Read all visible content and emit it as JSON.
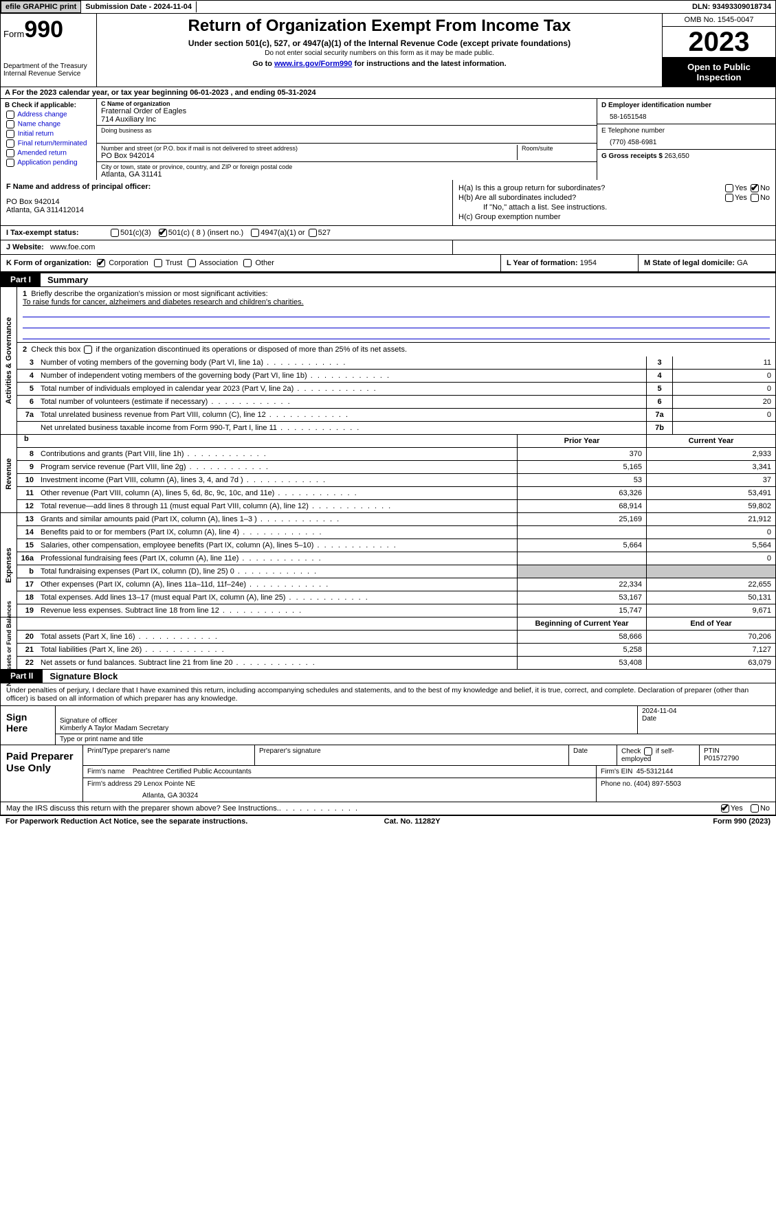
{
  "topbar": {
    "efile_label": "efile GRAPHIC print",
    "submission_label": "Submission Date - 2024-11-04",
    "dln_label": "DLN: 93493309018734"
  },
  "header": {
    "form_prefix": "Form",
    "form_number": "990",
    "dept": "Department of the Treasury",
    "irs": "Internal Revenue Service",
    "title": "Return of Organization Exempt From Income Tax",
    "subtitle": "Under section 501(c), 527, or 4947(a)(1) of the Internal Revenue Code (except private foundations)",
    "ssn_note": "Do not enter social security numbers on this form as it may be made public.",
    "goto_prefix": "Go to ",
    "goto_link": "www.irs.gov/Form990",
    "goto_suffix": " for instructions and the latest information.",
    "omb": "OMB No. 1545-0047",
    "year": "2023",
    "inspection": "Open to Public Inspection"
  },
  "row_a": "A For the 2023 calendar year, or tax year beginning 06-01-2023    , and ending 05-31-2024",
  "col_b": {
    "header": "B Check if applicable:",
    "items": [
      "Address change",
      "Name change",
      "Initial return",
      "Final return/terminated",
      "Amended return",
      "Application pending"
    ]
  },
  "col_c": {
    "name_label": "C Name of organization",
    "name": "Fraternal Order of Eagles",
    "name2": "714 Auxiliary Inc",
    "dba_label": "Doing business as",
    "addr_label": "Number and street (or P.O. box if mail is not delivered to street address)",
    "addr": "PO Box 942014",
    "room_label": "Room/suite",
    "city_label": "City or town, state or province, country, and ZIP or foreign postal code",
    "city": "Atlanta, GA  31141"
  },
  "col_d": {
    "ein_label": "D Employer identification number",
    "ein": "58-1651548",
    "phone_label": "E Telephone number",
    "phone": "(770) 458-6981",
    "gross_label": "G Gross receipts $ ",
    "gross": "263,650"
  },
  "col_f": {
    "label": "F  Name and address of principal officer:",
    "line1": "PO Box 942014",
    "line2": "Atlanta, GA  311412014"
  },
  "col_h": {
    "ha_label": "H(a)  Is this a group return for subordinates?",
    "hb_label": "H(b)  Are all subordinates included?",
    "hb_note": "If \"No,\" attach a list. See instructions.",
    "hc_label": "H(c)  Group exemption number",
    "yes": "Yes",
    "no": "No"
  },
  "row_i": {
    "label": "I   Tax-exempt status:",
    "o1": "501(c)(3)",
    "o2": "501(c) ( 8 ) (insert no.)",
    "o3": "4947(a)(1) or",
    "o4": "527"
  },
  "row_j": {
    "label": "J   Website:",
    "val": "www.foe.com"
  },
  "row_k": {
    "label": "K Form of organization:",
    "o1": "Corporation",
    "o2": "Trust",
    "o3": "Association",
    "o4": "Other"
  },
  "row_l": {
    "label": "L Year of formation: ",
    "val": "1954"
  },
  "row_m": {
    "label": "M State of legal domicile: ",
    "val": "GA"
  },
  "part1": {
    "tab": "Part I",
    "title": "Summary"
  },
  "summary": {
    "side_ag": "Activities & Governance",
    "side_rev": "Revenue",
    "side_exp": "Expenses",
    "side_net": "Net Assets or Fund Balances",
    "line1_label": "Briefly describe the organization's mission or most significant activities:",
    "line1_val": "To raise funds for cancer, alzheimers and diabetes research and children's charities.",
    "line2": "Check this box       if the organization discontinued its operations or disposed of more than 25% of its net assets.",
    "rows_ag": [
      {
        "n": "3",
        "t": "Number of voting members of the governing body (Part VI, line 1a)",
        "box": "3",
        "v": "11"
      },
      {
        "n": "4",
        "t": "Number of independent voting members of the governing body (Part VI, line 1b)",
        "box": "4",
        "v": "0"
      },
      {
        "n": "5",
        "t": "Total number of individuals employed in calendar year 2023 (Part V, line 2a)",
        "box": "5",
        "v": "0"
      },
      {
        "n": "6",
        "t": "Total number of volunteers (estimate if necessary)",
        "box": "6",
        "v": "20"
      },
      {
        "n": "7a",
        "t": "Total unrelated business revenue from Part VIII, column (C), line 12",
        "box": "7a",
        "v": "0"
      },
      {
        "n": "",
        "t": "Net unrelated business taxable income from Form 990-T, Part I, line 11",
        "box": "7b",
        "v": ""
      }
    ],
    "head_prior": "Prior Year",
    "head_curr": "Current Year",
    "rows_rev": [
      {
        "n": "8",
        "t": "Contributions and grants (Part VIII, line 1h)",
        "p": "370",
        "c": "2,933"
      },
      {
        "n": "9",
        "t": "Program service revenue (Part VIII, line 2g)",
        "p": "5,165",
        "c": "3,341"
      },
      {
        "n": "10",
        "t": "Investment income (Part VIII, column (A), lines 3, 4, and 7d )",
        "p": "53",
        "c": "37"
      },
      {
        "n": "11",
        "t": "Other revenue (Part VIII, column (A), lines 5, 6d, 8c, 9c, 10c, and 11e)",
        "p": "63,326",
        "c": "53,491"
      },
      {
        "n": "12",
        "t": "Total revenue—add lines 8 through 11 (must equal Part VIII, column (A), line 12)",
        "p": "68,914",
        "c": "59,802"
      }
    ],
    "rows_exp": [
      {
        "n": "13",
        "t": "Grants and similar amounts paid (Part IX, column (A), lines 1–3 )",
        "p": "25,169",
        "c": "21,912"
      },
      {
        "n": "14",
        "t": "Benefits paid to or for members (Part IX, column (A), line 4)",
        "p": "",
        "c": "0"
      },
      {
        "n": "15",
        "t": "Salaries, other compensation, employee benefits (Part IX, column (A), lines 5–10)",
        "p": "5,664",
        "c": "5,564"
      },
      {
        "n": "16a",
        "t": "Professional fundraising fees (Part IX, column (A), line 11e)",
        "p": "",
        "c": "0"
      },
      {
        "n": "b",
        "t": "Total fundraising expenses (Part IX, column (D), line 25) 0",
        "p": "SHADE",
        "c": "SHADE"
      },
      {
        "n": "17",
        "t": "Other expenses (Part IX, column (A), lines 11a–11d, 11f–24e)",
        "p": "22,334",
        "c": "22,655"
      },
      {
        "n": "18",
        "t": "Total expenses. Add lines 13–17 (must equal Part IX, column (A), line 25)",
        "p": "53,167",
        "c": "50,131"
      },
      {
        "n": "19",
        "t": "Revenue less expenses. Subtract line 18 from line 12",
        "p": "15,747",
        "c": "9,671"
      }
    ],
    "head_begin": "Beginning of Current Year",
    "head_end": "End of Year",
    "rows_net": [
      {
        "n": "20",
        "t": "Total assets (Part X, line 16)",
        "p": "58,666",
        "c": "70,206"
      },
      {
        "n": "21",
        "t": "Total liabilities (Part X, line 26)",
        "p": "5,258",
        "c": "7,127"
      },
      {
        "n": "22",
        "t": "Net assets or fund balances. Subtract line 21 from line 20",
        "p": "53,408",
        "c": "63,079"
      }
    ]
  },
  "part2": {
    "tab": "Part II",
    "title": "Signature Block"
  },
  "decl": "Under penalties of perjury, I declare that I have examined this return, including accompanying schedules and statements, and to the best of my knowledge and belief, it is true, correct, and complete. Declaration of preparer (other than officer) is based on all information of which preparer has any knowledge.",
  "sign": {
    "left": "Sign Here",
    "sig_label": "Signature of officer",
    "date_label": "Date",
    "date_val": "2024-11-04",
    "name": "Kimberly A Taylor Madam Secretary",
    "type_label": "Type or print name and title"
  },
  "prep": {
    "left": "Paid Preparer Use Only",
    "h1": "Print/Type preparer's name",
    "h2": "Preparer's signature",
    "h3": "Date",
    "h4_a": "Check",
    "h4_b": "if self-employed",
    "h5": "PTIN",
    "ptin": "P01572790",
    "firm_label": "Firm's name",
    "firm": "Peachtree Certified Public Accountants",
    "ein_label": "Firm's EIN",
    "ein": "45-5312144",
    "addr_label": "Firm's address",
    "addr1": "29 Lenox Pointe NE",
    "addr2": "Atlanta, GA  30324",
    "phone_label": "Phone no.",
    "phone": "(404) 897-5503"
  },
  "discuss": {
    "q": "May the IRS discuss this return with the preparer shown above? See Instructions.",
    "yes": "Yes",
    "no": "No"
  },
  "footer": {
    "left": "For Paperwork Reduction Act Notice, see the separate instructions.",
    "mid": "Cat. No. 11282Y",
    "right_a": "Form ",
    "right_b": "990",
    "right_c": " (2023)"
  },
  "colors": {
    "link": "#0000cc",
    "black": "#000000",
    "shade": "#c8c8c8",
    "btn": "#d0d0d0"
  }
}
